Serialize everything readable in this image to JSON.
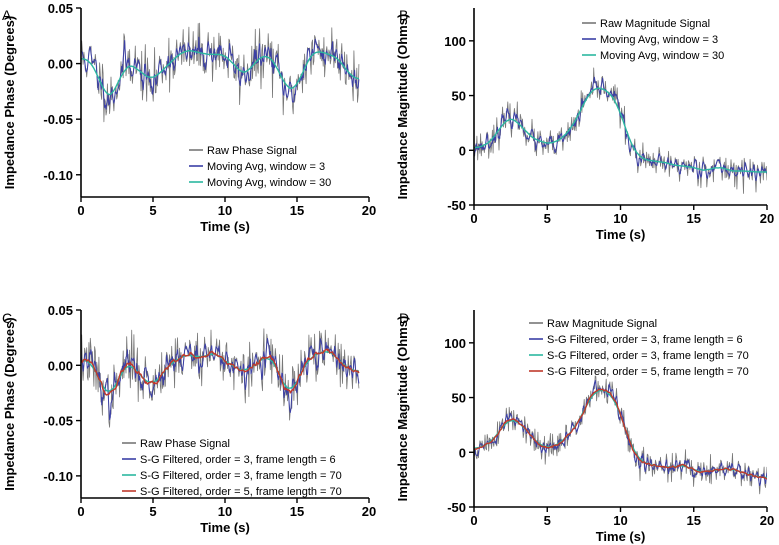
{
  "figure": {
    "panels": [
      {
        "letter": "A"
      },
      {
        "letter": "B"
      },
      {
        "letter": "C"
      },
      {
        "letter": "D"
      }
    ]
  },
  "chart_data": [
    {
      "type": "line",
      "panel": "A",
      "xlabel": "Time (s)",
      "ylabel": "Impedance Phase (Degrees)",
      "xlim": [
        0,
        20
      ],
      "ylim": [
        -0.12,
        0.05
      ],
      "xticks": [
        0,
        5,
        10,
        15,
        20
      ],
      "yticks": [
        0.05,
        0.0,
        -0.05,
        -0.1
      ],
      "ytick_labels": [
        "0.05",
        "0.00",
        "-0.05",
        "-0.10"
      ],
      "grid": false,
      "legend_position": "bottom-right",
      "series": [
        {
          "name": "Raw Phase Signal",
          "color": "#777777",
          "kind": "raw"
        },
        {
          "name": "Moving Avg, window = 3",
          "color": "#3b3fa6",
          "kind": "lightly-smoothed"
        },
        {
          "name": "Moving Avg, window = 30",
          "color": "#2bb7a0",
          "kind": "heavily-smoothed"
        }
      ],
      "approx_x": [
        0,
        0.5,
        1,
        1.5,
        2,
        2.5,
        3,
        3.5,
        4,
        4.5,
        5,
        5.5,
        6,
        6.5,
        7,
        7.5,
        8,
        8.5,
        9,
        9.5,
        10,
        10.5,
        11,
        11.5,
        12,
        12.5,
        13,
        13.5,
        14,
        14.5,
        15,
        15.5,
        16,
        16.5,
        17,
        17.5,
        18,
        18.5,
        19,
        19.3
      ],
      "approx_y": [
        0.005,
        0.004,
        -0.005,
        -0.02,
        -0.032,
        -0.02,
        0.0,
        0.003,
        -0.005,
        -0.012,
        -0.022,
        -0.005,
        0.003,
        0.006,
        0.008,
        0.009,
        0.01,
        0.01,
        0.011,
        0.01,
        0.008,
        0.0,
        -0.01,
        -0.008,
        0.0,
        0.005,
        0.008,
        0.0,
        -0.02,
        -0.03,
        -0.02,
        0.0,
        0.008,
        0.012,
        0.01,
        0.01,
        0.005,
        0.0,
        -0.01,
        -0.02
      ]
    },
    {
      "type": "line",
      "panel": "B",
      "xlabel": "Time (s)",
      "ylabel": "Impedance Magnitude (Ohms)",
      "xlim": [
        0,
        20
      ],
      "ylim": [
        -50,
        130
      ],
      "xticks": [
        0,
        5,
        10,
        15,
        20
      ],
      "yticks": [
        100,
        50,
        0,
        -50
      ],
      "ytick_labels": [
        "100",
        "50",
        "0",
        "-50"
      ],
      "grid": false,
      "legend_position": "top-right",
      "series": [
        {
          "name": "Raw Magnitude Signal",
          "color": "#777777",
          "kind": "raw"
        },
        {
          "name": "Moving Avg, window = 3",
          "color": "#3b3fa6",
          "kind": "lightly-smoothed"
        },
        {
          "name": "Moving Avg, window = 30",
          "color": "#2bb7a0",
          "kind": "heavily-smoothed"
        }
      ],
      "approx_x": [
        0,
        0.5,
        1,
        1.5,
        2,
        2.5,
        3,
        3.5,
        4,
        4.5,
        5,
        5.5,
        6,
        6.5,
        7,
        7.5,
        8,
        8.5,
        9,
        9.5,
        10,
        10.5,
        11,
        11.5,
        12,
        13,
        14,
        15,
        16,
        17,
        18,
        19,
        20
      ],
      "approx_y": [
        2,
        4,
        8,
        15,
        25,
        30,
        28,
        20,
        10,
        5,
        3,
        4,
        8,
        15,
        28,
        42,
        52,
        57,
        58,
        52,
        35,
        12,
        -5,
        -10,
        -12,
        -13,
        -14,
        -15,
        -16,
        -17,
        -18,
        -20,
        -22
      ]
    },
    {
      "type": "line",
      "panel": "C",
      "xlabel": "Time (s)",
      "ylabel": "Impedance Phase (Degrees)",
      "xlim": [
        0,
        20
      ],
      "ylim": [
        -0.12,
        0.05
      ],
      "xticks": [
        0,
        5,
        10,
        15,
        20
      ],
      "yticks": [
        0.05,
        0.0,
        -0.05,
        -0.1
      ],
      "ytick_labels": [
        "0.05",
        "0.00",
        "-0.05",
        "-0.10"
      ],
      "grid": false,
      "legend_position": "bottom-right",
      "series": [
        {
          "name": "Raw Phase Signal",
          "color": "#777777",
          "kind": "raw"
        },
        {
          "name": "S-G Filtered, order = 3, frame length = 6",
          "color": "#3b3fa6",
          "kind": "lightly-smoothed"
        },
        {
          "name": "S-G Filtered, order = 3, frame length = 70",
          "color": "#2bb7a0",
          "kind": "heavily-smoothed"
        },
        {
          "name": "S-G Filtered, order = 5, frame length = 70",
          "color": "#c0392b",
          "kind": "heavily-smoothed"
        }
      ],
      "approx_x": [
        0,
        0.5,
        1,
        1.5,
        2,
        2.5,
        3,
        3.5,
        4,
        4.5,
        5,
        5.5,
        6,
        6.5,
        7,
        7.5,
        8,
        8.5,
        9,
        9.5,
        10,
        10.5,
        11,
        11.5,
        12,
        12.5,
        13,
        13.5,
        14,
        14.5,
        15,
        15.5,
        16,
        16.5,
        17,
        17.5,
        18,
        18.5,
        19,
        19.3
      ],
      "approx_y": [
        0.005,
        0.004,
        -0.005,
        -0.02,
        -0.032,
        -0.02,
        0.0,
        0.003,
        -0.005,
        -0.012,
        -0.022,
        -0.005,
        0.003,
        0.006,
        0.008,
        0.009,
        0.01,
        0.01,
        0.011,
        0.01,
        0.008,
        0.0,
        -0.01,
        -0.008,
        0.0,
        0.005,
        0.008,
        0.0,
        -0.02,
        -0.03,
        -0.02,
        0.0,
        0.008,
        0.012,
        0.01,
        0.01,
        0.005,
        0.0,
        -0.01,
        -0.02
      ]
    },
    {
      "type": "line",
      "panel": "D",
      "xlabel": "Time (s)",
      "ylabel": "Impedance Magnitude (Ohms)",
      "xlim": [
        0,
        20
      ],
      "ylim": [
        -50,
        130
      ],
      "xticks": [
        0,
        5,
        10,
        15,
        20
      ],
      "yticks": [
        100,
        50,
        0,
        -50
      ],
      "ytick_labels": [
        "100",
        "50",
        "0",
        "-50"
      ],
      "grid": false,
      "legend_position": "top-right",
      "series": [
        {
          "name": "Raw Magnitude Signal",
          "color": "#777777",
          "kind": "raw"
        },
        {
          "name": "S-G Filtered, order = 3, frame length = 6",
          "color": "#3b3fa6",
          "kind": "lightly-smoothed"
        },
        {
          "name": "S-G Filtered, order = 3, frame length = 70",
          "color": "#2bb7a0",
          "kind": "heavily-smoothed"
        },
        {
          "name": "S-G Filtered, order = 5, frame length = 70",
          "color": "#c0392b",
          "kind": "heavily-smoothed"
        }
      ],
      "approx_x": [
        0,
        0.5,
        1,
        1.5,
        2,
        2.5,
        3,
        3.5,
        4,
        4.5,
        5,
        5.5,
        6,
        6.5,
        7,
        7.5,
        8,
        8.5,
        9,
        9.5,
        10,
        10.5,
        11,
        11.5,
        12,
        13,
        14,
        15,
        16,
        17,
        18,
        19,
        20
      ],
      "approx_y": [
        2,
        4,
        8,
        15,
        25,
        30,
        28,
        20,
        10,
        5,
        3,
        4,
        8,
        15,
        28,
        42,
        52,
        57,
        58,
        52,
        35,
        12,
        -5,
        -10,
        -12,
        -13,
        -14,
        -15,
        -16,
        -17,
        -18,
        -20,
        -22
      ]
    }
  ]
}
